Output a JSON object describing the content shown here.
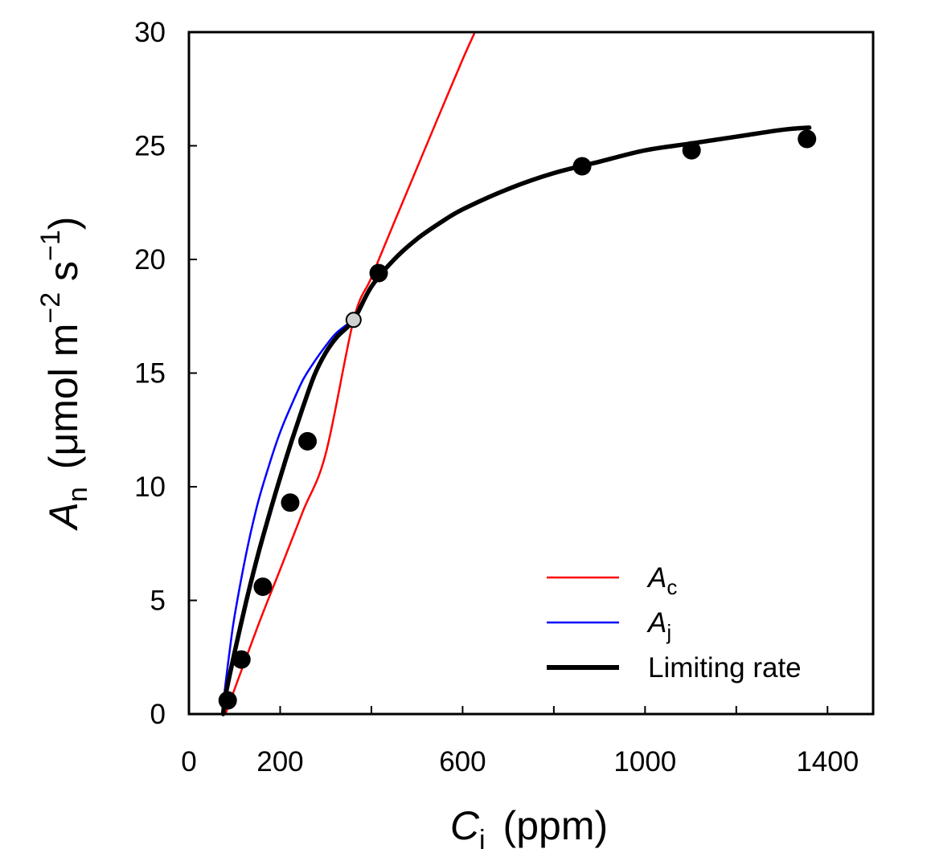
{
  "chart_data": {
    "type": "line",
    "x_axis": {
      "range": [
        0,
        1500
      ],
      "ticks": [
        0,
        200,
        600,
        1000,
        1400
      ],
      "minor_ticks": [
        0,
        200,
        400,
        600,
        800,
        1000,
        1200,
        1400
      ],
      "label_symbol": "C",
      "label_subscript": "i",
      "label_unit": "(ppm)"
    },
    "y_axis": {
      "range": [
        0,
        30
      ],
      "ticks": [
        0,
        5,
        10,
        15,
        20,
        25,
        30
      ],
      "label_symbol": "A",
      "label_subscript": "n",
      "label_unit": "(μmol m",
      "label_exp1": "−2",
      "label_mid": " s",
      "label_exp2": "−1",
      "label_close": ")"
    },
    "series": [
      {
        "name": "A",
        "name_subscript": "c",
        "color": "#ff0000",
        "style": "thin",
        "x": [
          80,
          150,
          200,
          250,
          300,
          361,
          400,
          450,
          500,
          550,
          600,
          627
        ],
        "y": [
          0.0,
          3.81,
          6.36,
          8.92,
          11.46,
          17.34,
          19.2,
          21.63,
          24.03,
          26.42,
          28.8,
          30.0
        ]
      },
      {
        "name": "A",
        "name_subscript": "j",
        "color": "#0000ff",
        "style": "thin",
        "x": [
          73,
          80,
          90,
          100,
          125,
          150,
          175,
          200,
          225,
          250,
          275,
          300,
          325,
          361
        ],
        "y": [
          0.0,
          1.3,
          2.9,
          4.3,
          7.0,
          9.2,
          10.9,
          12.4,
          13.6,
          14.7,
          15.5,
          16.2,
          16.8,
          17.34
        ]
      },
      {
        "name": "Limiting rate",
        "color": "#000000",
        "style": "thick",
        "x": [
          75,
          80,
          100,
          125,
          150,
          175,
          200,
          225,
          250,
          275,
          300,
          325,
          361,
          400,
          450,
          500,
          550,
          600,
          700,
          800,
          900,
          1000,
          1100,
          1200,
          1300,
          1360
        ],
        "y": [
          0.0,
          0.8,
          2.7,
          4.9,
          6.9,
          8.7,
          10.4,
          12.0,
          13.5,
          14.9,
          15.9,
          16.6,
          17.34,
          18.8,
          20.0,
          20.9,
          21.6,
          22.2,
          23.1,
          23.8,
          24.3,
          24.8,
          25.1,
          25.4,
          25.7,
          25.8
        ]
      }
    ],
    "observations": {
      "x": [
        85,
        115,
        162,
        222,
        260,
        416,
        862,
        1102,
        1355
      ],
      "y": [
        0.6,
        2.4,
        5.6,
        9.3,
        12.0,
        19.4,
        24.1,
        24.8,
        25.3
      ]
    },
    "colimitation_point": {
      "x": 361,
      "y": 17.34
    },
    "legend_placement": "bottom-right",
    "grid": false
  }
}
